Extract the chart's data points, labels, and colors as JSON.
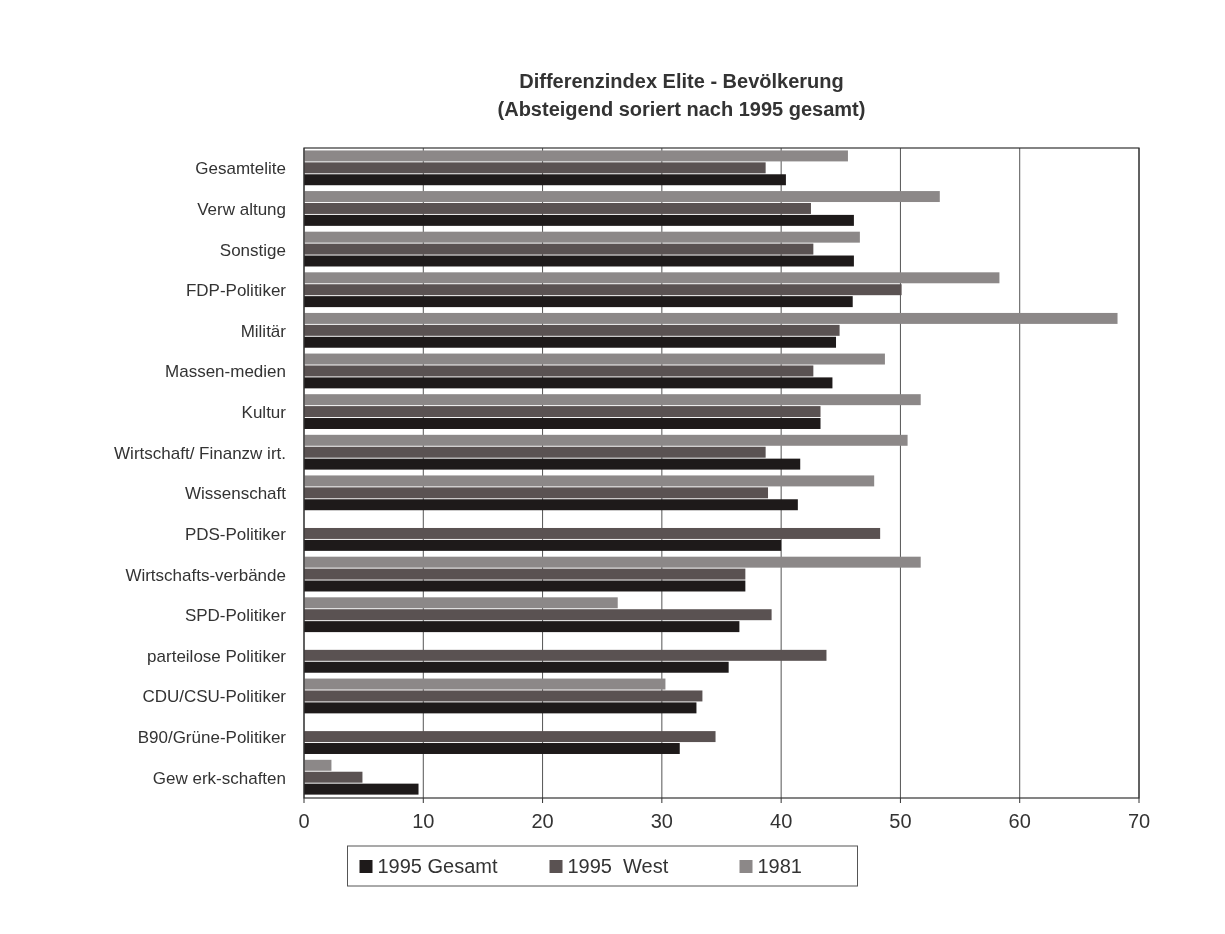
{
  "chart_data": {
    "type": "bar",
    "orientation": "horizontal",
    "title": "Differenzindex Elite - Bevölkerung",
    "subtitle": "(Absteigend soriert nach 1995 gesamt)",
    "categories": [
      "Gesamtelite",
      "Verw altung",
      "Sonstige",
      "FDP-Politiker",
      "Militär",
      "Massen-medien",
      "Kultur",
      "Wirtschaft/ Finanzw irt.",
      "Wissenschaft",
      "PDS-Politiker",
      "Wirtschafts-verbände",
      "SPD-Politiker",
      "parteilose Politiker",
      "CDU/CSU-Politiker",
      "B90/Grüne-Politiker",
      "Gew erk-schaften"
    ],
    "series": [
      {
        "name": "1995 Gesamt",
        "color": "#1e1a1a",
        "values": [
          40.4,
          46.1,
          46.1,
          46.0,
          44.6,
          44.3,
          43.3,
          41.6,
          41.4,
          40.0,
          37.0,
          36.5,
          35.6,
          32.9,
          31.5,
          9.6
        ]
      },
      {
        "name": "1995  West",
        "color": "#5a5252",
        "values": [
          38.7,
          42.5,
          42.7,
          50.1,
          44.9,
          42.7,
          43.3,
          38.7,
          38.9,
          48.3,
          37.0,
          39.2,
          43.8,
          33.4,
          34.5,
          4.9
        ]
      },
      {
        "name": "1981",
        "color": "#8c8888",
        "values": [
          45.6,
          53.3,
          46.6,
          58.3,
          68.2,
          48.7,
          51.7,
          50.6,
          47.8,
          null,
          51.7,
          26.3,
          null,
          30.3,
          null,
          2.3
        ]
      }
    ],
    "xlim": [
      0,
      70
    ],
    "xticks": [
      0,
      10,
      20,
      30,
      40,
      50,
      60,
      70
    ],
    "grid": "x",
    "legend": "bottom"
  }
}
